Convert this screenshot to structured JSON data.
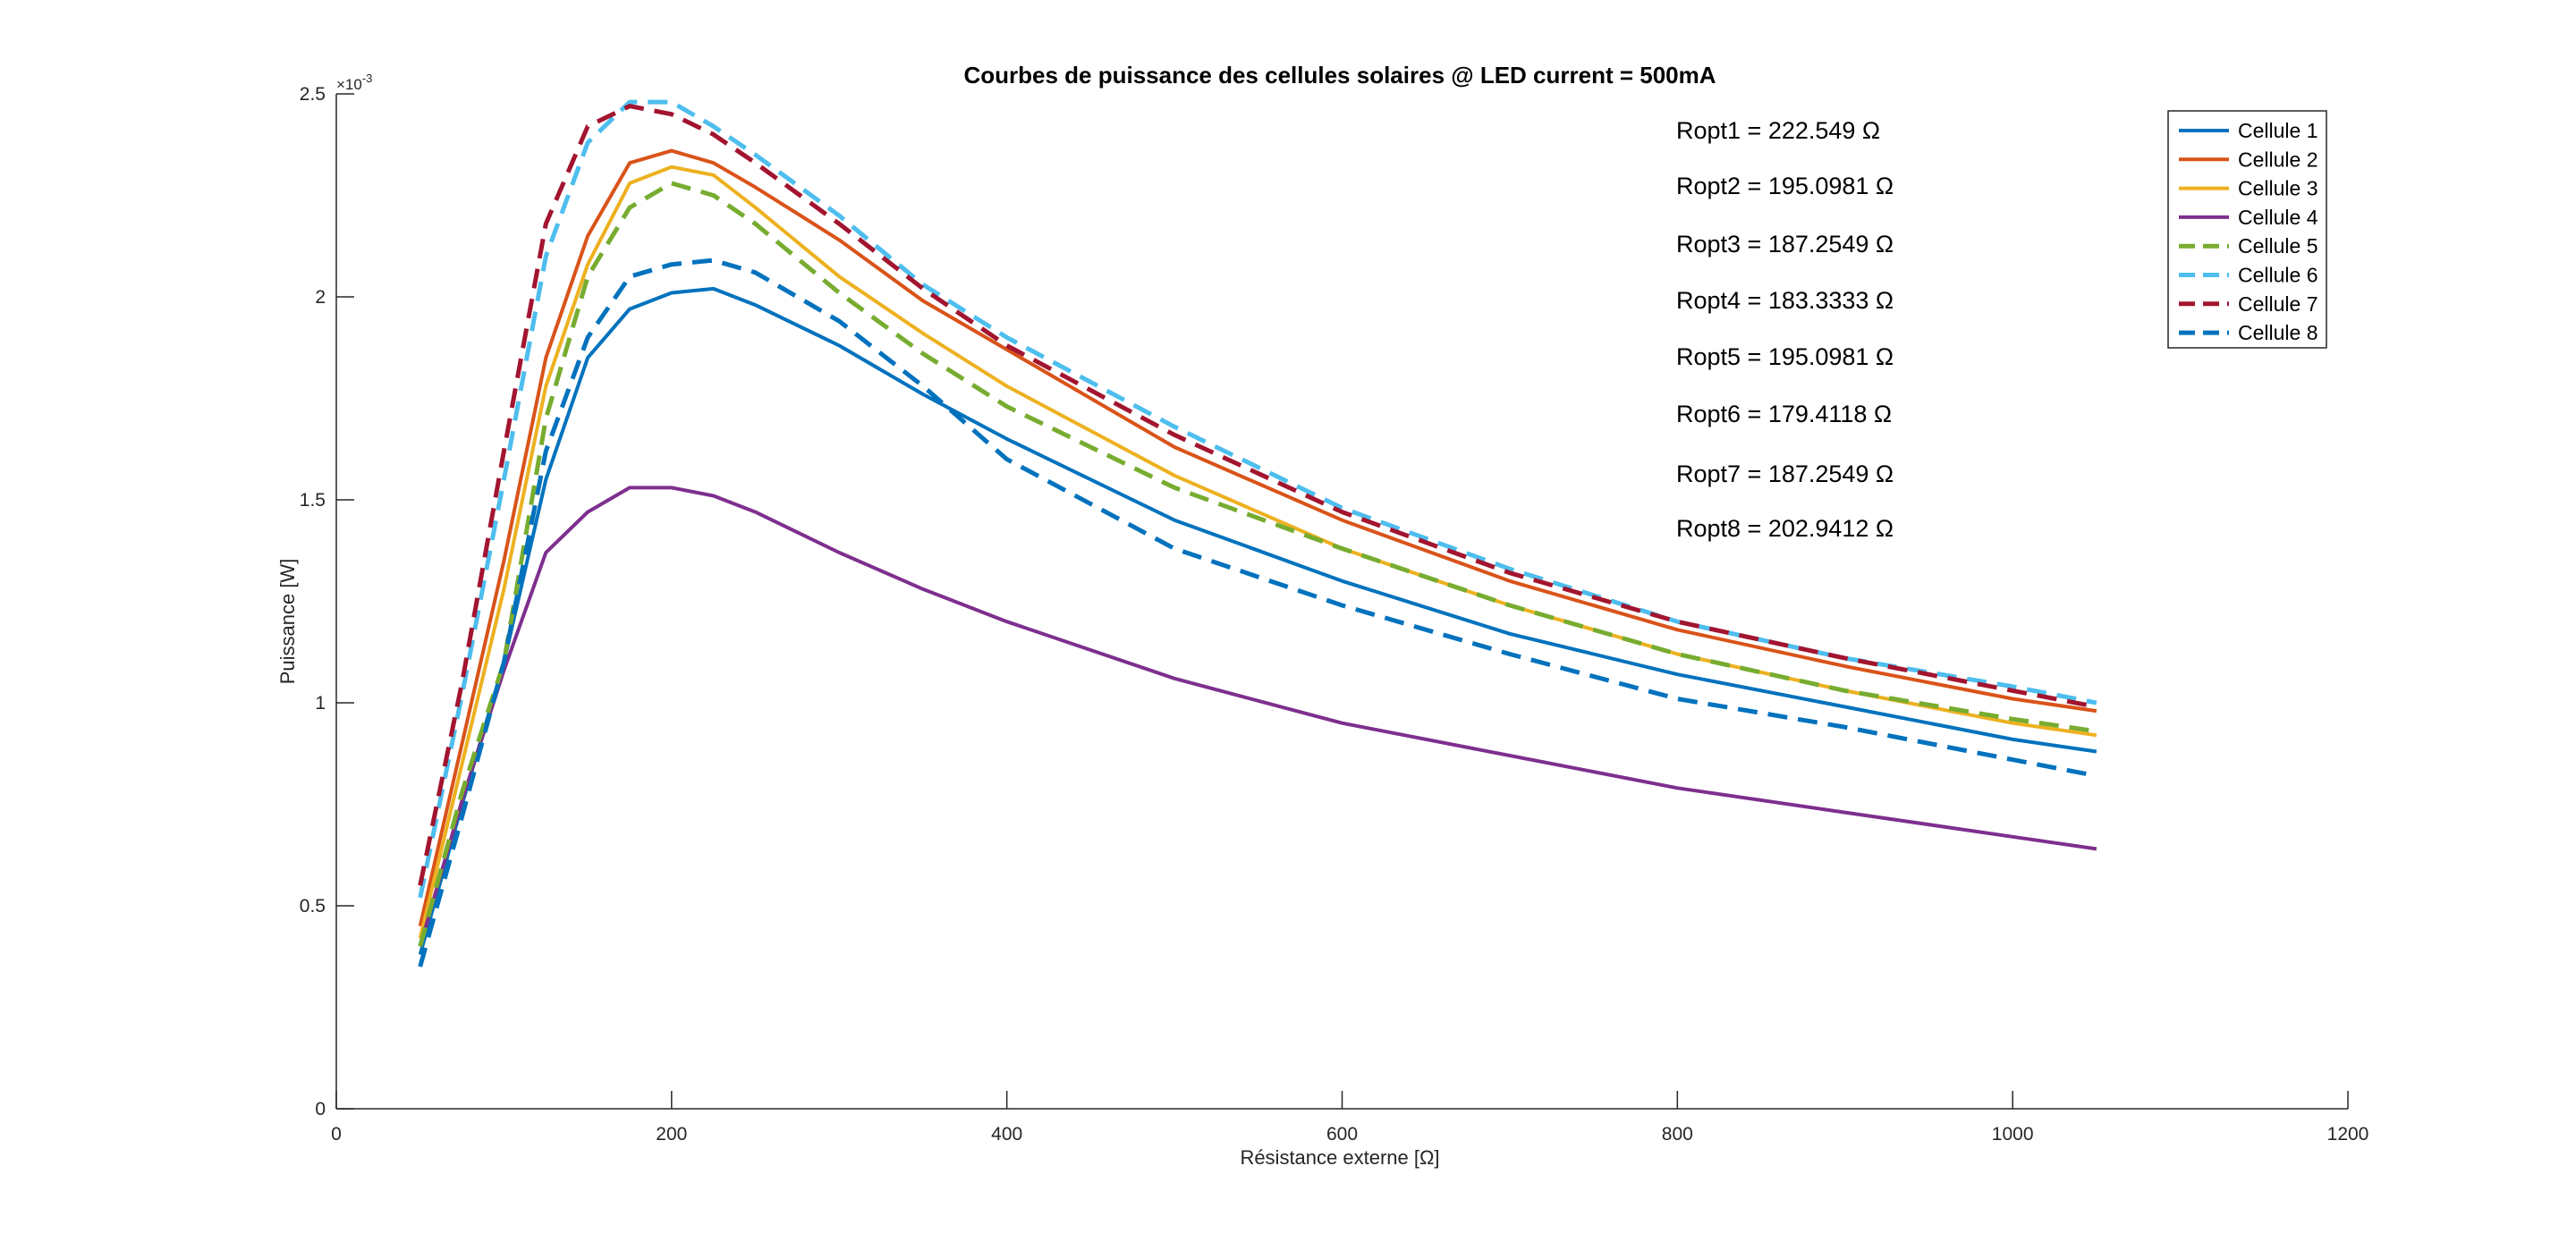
{
  "chart_data": {
    "type": "line",
    "title": "Courbes de puissance des cellules solaires @ LED current = 500mA",
    "xlabel": "Résistance externe [Ω]",
    "ylabel": "Puissance [W]",
    "y_multiplier_label": "×10",
    "y_multiplier_exponent": "-3",
    "xlim": [
      0,
      1200
    ],
    "ylim": [
      0,
      2.5
    ],
    "x_ticks": [
      0,
      200,
      400,
      600,
      800,
      1000,
      1200
    ],
    "x_tick_labels": [
      "0",
      "200",
      "400",
      "600",
      "800",
      "1000",
      "1200"
    ],
    "y_ticks": [
      0,
      0.5,
      1,
      1.5,
      2,
      2.5
    ],
    "y_tick_labels": [
      "0",
      "0.5",
      "1",
      "1.5",
      "2",
      "2.5"
    ],
    "y_scale_note": "values in units of 1e-3 W",
    "grid": false,
    "legend_position": "top-right",
    "annotations": [
      "Ropt1 = 222.549 Ω",
      "Ropt2 = 195.0981 Ω",
      "Ropt3 = 187.2549 Ω",
      "Ropt4 = 183.3333 Ω",
      "Ropt5 = 195.0981 Ω",
      "Ropt6 = 179.4118 Ω",
      "Ropt7 = 187.2549 Ω",
      "Ropt8 = 202.9412 Ω"
    ],
    "x": [
      50,
      75,
      100,
      125,
      150,
      175,
      200,
      225,
      250,
      300,
      350,
      400,
      500,
      600,
      700,
      800,
      900,
      1000,
      1050
    ],
    "series": [
      {
        "name": "Cellule 1",
        "color": "#0072BD",
        "dash": "solid",
        "values": [
          0.38,
          0.75,
          1.1,
          1.55,
          1.85,
          1.97,
          2.01,
          2.02,
          1.98,
          1.88,
          1.76,
          1.65,
          1.45,
          1.3,
          1.17,
          1.07,
          0.99,
          0.91,
          0.88
        ]
      },
      {
        "name": "Cellule 2",
        "color": "#D95319",
        "dash": "solid",
        "values": [
          0.45,
          0.9,
          1.35,
          1.85,
          2.15,
          2.33,
          2.36,
          2.33,
          2.27,
          2.14,
          1.99,
          1.87,
          1.63,
          1.45,
          1.3,
          1.18,
          1.09,
          1.01,
          0.98
        ]
      },
      {
        "name": "Cellule 3",
        "color": "#EDB120",
        "dash": "solid",
        "values": [
          0.42,
          0.85,
          1.28,
          1.78,
          2.08,
          2.28,
          2.32,
          2.3,
          2.22,
          2.05,
          1.91,
          1.78,
          1.56,
          1.38,
          1.24,
          1.12,
          1.03,
          0.95,
          0.92
        ]
      },
      {
        "name": "Cellule 4",
        "color": "#7E2F8E",
        "dash": "solid",
        "values": [
          0.4,
          0.76,
          1.08,
          1.37,
          1.47,
          1.53,
          1.53,
          1.51,
          1.47,
          1.37,
          1.28,
          1.2,
          1.06,
          0.95,
          0.87,
          0.79,
          0.73,
          0.67,
          0.64
        ]
      },
      {
        "name": "Cellule 5",
        "color": "#77AC30",
        "dash": "dash",
        "values": [
          0.4,
          0.78,
          1.1,
          1.7,
          2.05,
          2.22,
          2.28,
          2.25,
          2.18,
          2.01,
          1.86,
          1.73,
          1.53,
          1.38,
          1.24,
          1.12,
          1.03,
          0.96,
          0.93
        ]
      },
      {
        "name": "Cellule 6",
        "color": "#4DBEEE",
        "dash": "dash",
        "values": [
          0.52,
          1.02,
          1.55,
          2.1,
          2.38,
          2.48,
          2.48,
          2.42,
          2.35,
          2.2,
          2.03,
          1.9,
          1.68,
          1.48,
          1.33,
          1.2,
          1.11,
          1.04,
          1.0
        ]
      },
      {
        "name": "Cellule 7",
        "color": "#A2142F",
        "dash": "dash",
        "values": [
          0.55,
          1.05,
          1.62,
          2.18,
          2.42,
          2.47,
          2.45,
          2.4,
          2.33,
          2.18,
          2.02,
          1.88,
          1.66,
          1.47,
          1.32,
          1.2,
          1.11,
          1.03,
          0.99
        ]
      },
      {
        "name": "Cellule 8",
        "color": "#0072BD",
        "dash": "dash",
        "values": [
          0.35,
          0.72,
          1.1,
          1.62,
          1.9,
          2.05,
          2.08,
          2.09,
          2.06,
          1.94,
          1.78,
          1.6,
          1.38,
          1.24,
          1.12,
          1.01,
          0.94,
          0.86,
          0.82
        ]
      }
    ]
  }
}
